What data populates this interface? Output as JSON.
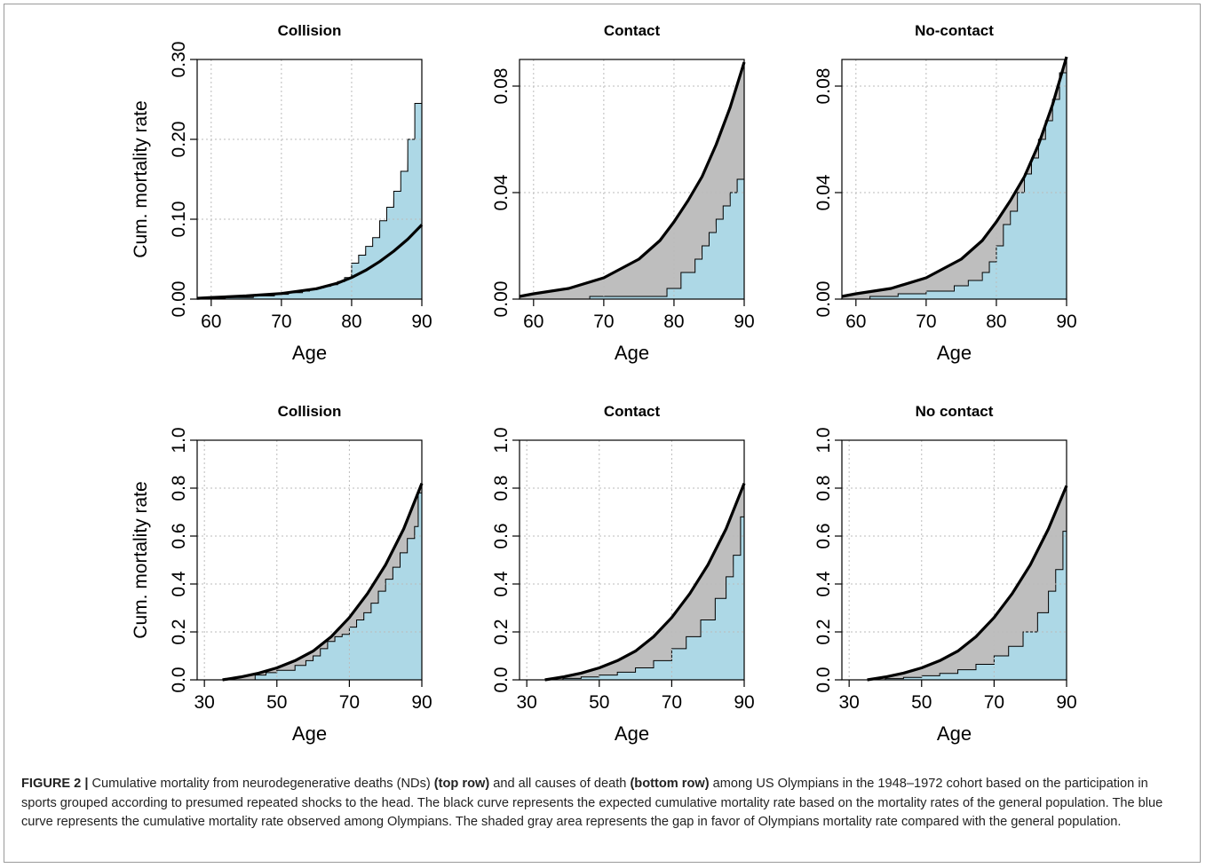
{
  "colors": {
    "observed_fill": "#add8e6",
    "gap_fill": "#bebebe",
    "expected_curve": "#000000",
    "grid": "#bbbbbb"
  },
  "chart_data": [
    {
      "type": "area",
      "title": "Collision",
      "xlabel": "Age",
      "ylabel": "Cum. mortality rate",
      "xlim": [
        58,
        90
      ],
      "ylim": [
        0,
        0.3
      ],
      "xticks": [
        60,
        70,
        80,
        90
      ],
      "yticks": [
        0.0,
        0.1,
        0.2,
        0.3
      ],
      "ytick_labels": [
        "0.00",
        "0.10",
        "0.20",
        "0.30"
      ],
      "grid": true,
      "series": [
        {
          "role": "expected",
          "x": [
            58,
            60,
            65,
            70,
            75,
            78,
            80,
            82,
            84,
            86,
            88,
            90
          ],
          "y": [
            0.001,
            0.002,
            0.004,
            0.007,
            0.013,
            0.02,
            0.027,
            0.036,
            0.047,
            0.06,
            0.075,
            0.093
          ]
        },
        {
          "role": "observed",
          "step": true,
          "x": [
            58,
            62,
            66,
            69,
            71,
            73,
            74,
            75,
            76,
            77,
            78,
            79,
            80,
            81,
            82,
            83,
            84,
            85,
            86,
            87,
            88,
            89,
            89.5,
            90
          ],
          "y": [
            0.001,
            0.002,
            0.004,
            0.006,
            0.008,
            0.01,
            0.012,
            0.014,
            0.016,
            0.018,
            0.022,
            0.027,
            0.045,
            0.055,
            0.066,
            0.077,
            0.098,
            0.115,
            0.135,
            0.16,
            0.2,
            0.245,
            0.245,
            0.245
          ]
        }
      ]
    },
    {
      "type": "area",
      "title": "Contact",
      "xlabel": "Age",
      "xlim": [
        58,
        90
      ],
      "ylim": [
        0,
        0.09
      ],
      "xticks": [
        60,
        70,
        80,
        90
      ],
      "yticks": [
        0.0,
        0.04,
        0.08
      ],
      "ytick_labels": [
        "0.00",
        "0.04",
        "0.08"
      ],
      "grid": true,
      "series": [
        {
          "role": "expected",
          "x": [
            58,
            60,
            65,
            70,
            75,
            78,
            80,
            82,
            84,
            86,
            88,
            90
          ],
          "y": [
            0.001,
            0.002,
            0.004,
            0.008,
            0.015,
            0.022,
            0.029,
            0.037,
            0.046,
            0.058,
            0.072,
            0.089
          ]
        },
        {
          "role": "observed",
          "step": true,
          "x": [
            58,
            68,
            79,
            81,
            83,
            84,
            85,
            86,
            87,
            88,
            89,
            90
          ],
          "y": [
            0.0,
            0.001,
            0.004,
            0.01,
            0.015,
            0.02,
            0.025,
            0.03,
            0.035,
            0.04,
            0.045,
            0.045
          ]
        }
      ]
    },
    {
      "type": "area",
      "title": "No-contact",
      "xlabel": "Age",
      "xlim": [
        58,
        90
      ],
      "ylim": [
        0,
        0.09
      ],
      "xticks": [
        60,
        70,
        80,
        90
      ],
      "yticks": [
        0.0,
        0.04,
        0.08
      ],
      "ytick_labels": [
        "0.00",
        "0.04",
        "0.08"
      ],
      "grid": true,
      "series": [
        {
          "role": "expected",
          "x": [
            58,
            60,
            65,
            70,
            75,
            78,
            80,
            82,
            84,
            86,
            88,
            90
          ],
          "y": [
            0.001,
            0.002,
            0.004,
            0.008,
            0.015,
            0.022,
            0.029,
            0.037,
            0.046,
            0.058,
            0.073,
            0.091
          ]
        },
        {
          "role": "observed",
          "step": true,
          "x": [
            58,
            62,
            66,
            70,
            74,
            76,
            78,
            79,
            80,
            81,
            82,
            83,
            84,
            85,
            86,
            87,
            88,
            89,
            90
          ],
          "y": [
            0.0,
            0.001,
            0.002,
            0.003,
            0.005,
            0.007,
            0.01,
            0.014,
            0.02,
            0.028,
            0.033,
            0.04,
            0.047,
            0.053,
            0.06,
            0.067,
            0.075,
            0.085,
            0.09
          ]
        }
      ]
    },
    {
      "type": "area",
      "title": "Collision",
      "xlabel": "Age",
      "ylabel": "Cum. mortality rate",
      "xlim": [
        28,
        90
      ],
      "ylim": [
        0,
        1.0
      ],
      "xticks": [
        30,
        50,
        70,
        90
      ],
      "yticks": [
        0.0,
        0.2,
        0.4,
        0.6,
        0.8,
        1.0
      ],
      "ytick_labels": [
        "0.0",
        "0.2",
        "0.4",
        "0.6",
        "0.8",
        "1.0"
      ],
      "grid": true,
      "series": [
        {
          "role": "expected",
          "x": [
            35,
            40,
            45,
            50,
            55,
            60,
            65,
            70,
            75,
            80,
            85,
            90
          ],
          "y": [
            0.0,
            0.012,
            0.028,
            0.05,
            0.08,
            0.12,
            0.18,
            0.26,
            0.36,
            0.48,
            0.63,
            0.82
          ]
        },
        {
          "role": "observed",
          "step": true,
          "x": [
            35,
            44,
            47,
            50,
            55,
            58,
            60,
            62,
            64,
            66,
            68,
            70,
            72,
            74,
            76,
            78,
            80,
            82,
            84,
            86,
            88,
            89,
            90
          ],
          "y": [
            0.0,
            0.02,
            0.03,
            0.04,
            0.06,
            0.08,
            0.1,
            0.13,
            0.16,
            0.18,
            0.19,
            0.22,
            0.25,
            0.28,
            0.32,
            0.37,
            0.42,
            0.47,
            0.53,
            0.59,
            0.64,
            0.78,
            0.78
          ]
        }
      ]
    },
    {
      "type": "area",
      "title": "Contact",
      "xlabel": "Age",
      "xlim": [
        28,
        90
      ],
      "ylim": [
        0,
        1.0
      ],
      "xticks": [
        30,
        50,
        70,
        90
      ],
      "yticks": [
        0.0,
        0.2,
        0.4,
        0.6,
        0.8,
        1.0
      ],
      "ytick_labels": [
        "0.0",
        "0.2",
        "0.4",
        "0.6",
        "0.8",
        "1.0"
      ],
      "grid": true,
      "series": [
        {
          "role": "expected",
          "x": [
            35,
            40,
            45,
            50,
            55,
            60,
            65,
            70,
            75,
            80,
            85,
            90
          ],
          "y": [
            0.0,
            0.012,
            0.028,
            0.05,
            0.08,
            0.12,
            0.18,
            0.26,
            0.36,
            0.48,
            0.63,
            0.82
          ]
        },
        {
          "role": "observed",
          "step": true,
          "x": [
            35,
            40,
            45,
            50,
            55,
            60,
            65,
            70,
            74,
            78,
            82,
            85,
            87,
            89,
            90
          ],
          "y": [
            0.0,
            0.006,
            0.012,
            0.02,
            0.032,
            0.05,
            0.08,
            0.13,
            0.18,
            0.25,
            0.34,
            0.43,
            0.52,
            0.68,
            0.68
          ]
        }
      ]
    },
    {
      "type": "area",
      "title": "No contact",
      "xlabel": "Age",
      "xlim": [
        28,
        90
      ],
      "ylim": [
        0,
        1.0
      ],
      "xticks": [
        30,
        50,
        70,
        90
      ],
      "yticks": [
        0.0,
        0.2,
        0.4,
        0.6,
        0.8,
        1.0
      ],
      "ytick_labels": [
        "0.0",
        "0.2",
        "0.4",
        "0.6",
        "0.8",
        "1.0"
      ],
      "grid": true,
      "series": [
        {
          "role": "expected",
          "x": [
            35,
            40,
            45,
            50,
            55,
            60,
            65,
            70,
            75,
            80,
            85,
            90
          ],
          "y": [
            0.0,
            0.012,
            0.028,
            0.05,
            0.08,
            0.12,
            0.18,
            0.26,
            0.36,
            0.48,
            0.63,
            0.81
          ]
        },
        {
          "role": "observed",
          "step": true,
          "x": [
            35,
            40,
            45,
            50,
            55,
            60,
            65,
            70,
            74,
            78,
            82,
            85,
            87,
            89,
            90
          ],
          "y": [
            0.0,
            0.005,
            0.01,
            0.017,
            0.027,
            0.042,
            0.065,
            0.1,
            0.14,
            0.2,
            0.28,
            0.37,
            0.46,
            0.62,
            0.62
          ]
        }
      ]
    }
  ],
  "caption": {
    "lead": "FIGURE 2 |",
    "part1": " Cumulative mortality from neurodegenerative deaths (NDs) ",
    "top_row": "(top row)",
    "part2": " and all causes of death ",
    "bottom_row": "(bottom row)",
    "part3": " among US Olympians in the 1948–1972 cohort based on the participation in sports grouped according to presumed repeated shocks to the head. The black curve represents the expected cumulative mortality rate based on the mortality rates of the general population. The blue curve represents the cumulative mortality rate observed among Olympians. The shaded gray area represents the gap in favor of Olympians mortality rate compared with the general population."
  }
}
